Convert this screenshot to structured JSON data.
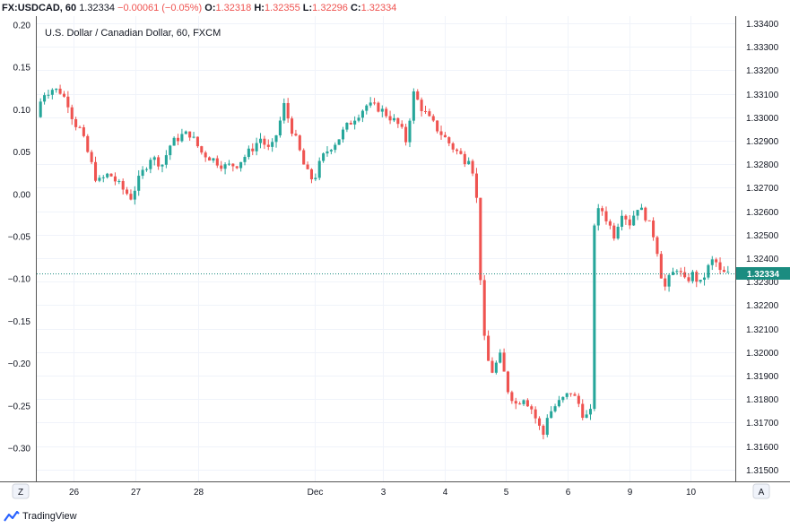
{
  "header": {
    "symbol": "FX:USDCAD, 60",
    "last": "1.32334",
    "change": "−0.00061 (−0.05%)",
    "o_label": "O:",
    "o_value": "1.32318",
    "h_label": "H:",
    "h_value": "1.32355",
    "l_label": "L:",
    "l_value": "1.32296",
    "c_label": "C:",
    "c_value": "1.32334"
  },
  "footer": {
    "brand": "TradingView"
  },
  "buttons": {
    "zoom": "Z",
    "auto": "A"
  },
  "colors": {
    "up": "#26a69a",
    "down": "#ef5350",
    "grid": "#f0f3fa",
    "axis": "#555555",
    "last_price": "#1b8c80"
  },
  "chart_data": {
    "type": "candlestick",
    "title": "U.S. Dollar / Canadian Dollar, 60, FXCM",
    "left_axis": {
      "ticks": [
        "0.20",
        "0.15",
        "0.10",
        "0.05",
        "0.00",
        "−0.05",
        "−0.10",
        "−0.15",
        "−0.20",
        "−0.25",
        "−0.30"
      ]
    },
    "right_axis": {
      "ticks": [
        "1.33400",
        "1.33300",
        "1.33200",
        "1.33100",
        "1.33000",
        "1.32900",
        "1.32800",
        "1.32700",
        "1.32600",
        "1.32500",
        "1.32400",
        "1.32300",
        "1.32200",
        "1.32100",
        "1.32000",
        "1.31900",
        "1.31800",
        "1.31700",
        "1.31600",
        "1.31500"
      ],
      "ylim": [
        1.3145,
        1.3343
      ]
    },
    "x_ticks": [
      "26",
      "27",
      "28",
      "Dec",
      "3",
      "4",
      "5",
      "6",
      "9",
      "10"
    ],
    "last_price": "1.32334",
    "last_price_value": 1.32334,
    "grid": true,
    "series": [
      {
        "x": 0,
        "price": 1.33
      },
      {
        "x": 1.5,
        "price": 1.331
      },
      {
        "x": 4,
        "price": 1.3312
      },
      {
        "x": 6,
        "price": 1.3311
      },
      {
        "x": 8,
        "price": 1.3306
      },
      {
        "x": 9.5,
        "price": 1.3298
      },
      {
        "x": 11,
        "price": 1.3295
      },
      {
        "x": 13,
        "price": 1.3285
      },
      {
        "x": 15.5,
        "price": 1.3272
      },
      {
        "x": 18.5,
        "price": 1.3276
      },
      {
        "x": 21.5,
        "price": 1.327
      },
      {
        "x": 24,
        "price": 1.3266
      },
      {
        "x": 26.5,
        "price": 1.3275
      },
      {
        "x": 29,
        "price": 1.3283
      },
      {
        "x": 32,
        "price": 1.328
      },
      {
        "x": 34,
        "price": 1.3288
      },
      {
        "x": 36.5,
        "price": 1.3292
      },
      {
        "x": 39,
        "price": 1.3293
      },
      {
        "x": 42,
        "price": 1.3285
      },
      {
        "x": 45,
        "price": 1.3282
      },
      {
        "x": 48,
        "price": 1.3279
      },
      {
        "x": 51,
        "price": 1.328
      },
      {
        "x": 54,
        "price": 1.3285
      },
      {
        "x": 57,
        "price": 1.3291
      },
      {
        "x": 59.5,
        "price": 1.3285
      },
      {
        "x": 61.5,
        "price": 1.3295
      },
      {
        "x": 63,
        "price": 1.3305
      },
      {
        "x": 64.5,
        "price": 1.3297
      },
      {
        "x": 66.5,
        "price": 1.3288
      },
      {
        "x": 68.5,
        "price": 1.3277
      },
      {
        "x": 70.5,
        "price": 1.3273
      },
      {
        "x": 72.5,
        "price": 1.3282
      },
      {
        "x": 74.5,
        "price": 1.3287
      },
      {
        "x": 76.5,
        "price": 1.329
      },
      {
        "x": 78.5,
        "price": 1.3295
      },
      {
        "x": 81,
        "price": 1.33
      },
      {
        "x": 84,
        "price": 1.3305
      },
      {
        "x": 87,
        "price": 1.3304
      },
      {
        "x": 90,
        "price": 1.33
      },
      {
        "x": 92.5,
        "price": 1.3296
      },
      {
        "x": 94,
        "price": 1.329
      },
      {
        "x": 96,
        "price": 1.331
      },
      {
        "x": 98,
        "price": 1.3304
      },
      {
        "x": 100,
        "price": 1.3299
      },
      {
        "x": 103,
        "price": 1.3293
      },
      {
        "x": 106,
        "price": 1.3287
      },
      {
        "x": 109,
        "price": 1.3282
      },
      {
        "x": 110.5,
        "price": 1.3284
      },
      {
        "x": 112,
        "price": 1.3265
      },
      {
        "x": 113,
        "price": 1.3232
      },
      {
        "x": 114,
        "price": 1.3205
      },
      {
        "x": 115,
        "price": 1.3196
      },
      {
        "x": 116,
        "price": 1.3192
      },
      {
        "x": 118,
        "price": 1.3198
      },
      {
        "x": 120,
        "price": 1.3184
      },
      {
        "x": 122,
        "price": 1.3178
      },
      {
        "x": 124,
        "price": 1.3181
      },
      {
        "x": 126,
        "price": 1.3176
      },
      {
        "x": 128,
        "price": 1.3168
      },
      {
        "x": 129,
        "price": 1.3165
      },
      {
        "x": 130,
        "price": 1.3173
      },
      {
        "x": 132,
        "price": 1.3177
      },
      {
        "x": 134,
        "price": 1.318
      },
      {
        "x": 136,
        "price": 1.3183
      },
      {
        "x": 138,
        "price": 1.3178
      },
      {
        "x": 139.5,
        "price": 1.3172
      },
      {
        "x": 141,
        "price": 1.3174
      },
      {
        "x": 142,
        "price": 1.3255
      },
      {
        "x": 143.5,
        "price": 1.3262
      },
      {
        "x": 145,
        "price": 1.3257
      },
      {
        "x": 147,
        "price": 1.325
      },
      {
        "x": 149,
        "price": 1.326
      },
      {
        "x": 151,
        "price": 1.3255
      },
      {
        "x": 153,
        "price": 1.3262
      },
      {
        "x": 155,
        "price": 1.3258
      },
      {
        "x": 157,
        "price": 1.325
      },
      {
        "x": 158.5,
        "price": 1.324
      },
      {
        "x": 159.5,
        "price": 1.3226
      },
      {
        "x": 161,
        "price": 1.3231
      },
      {
        "x": 163,
        "price": 1.3236
      },
      {
        "x": 165,
        "price": 1.323
      },
      {
        "x": 167,
        "price": 1.3233
      },
      {
        "x": 169,
        "price": 1.3229
      },
      {
        "x": 171,
        "price": 1.3236
      },
      {
        "x": 172.5,
        "price": 1.324
      },
      {
        "x": 174,
        "price": 1.3234
      },
      {
        "x": 175.5,
        "price": 1.3233
      }
    ]
  }
}
